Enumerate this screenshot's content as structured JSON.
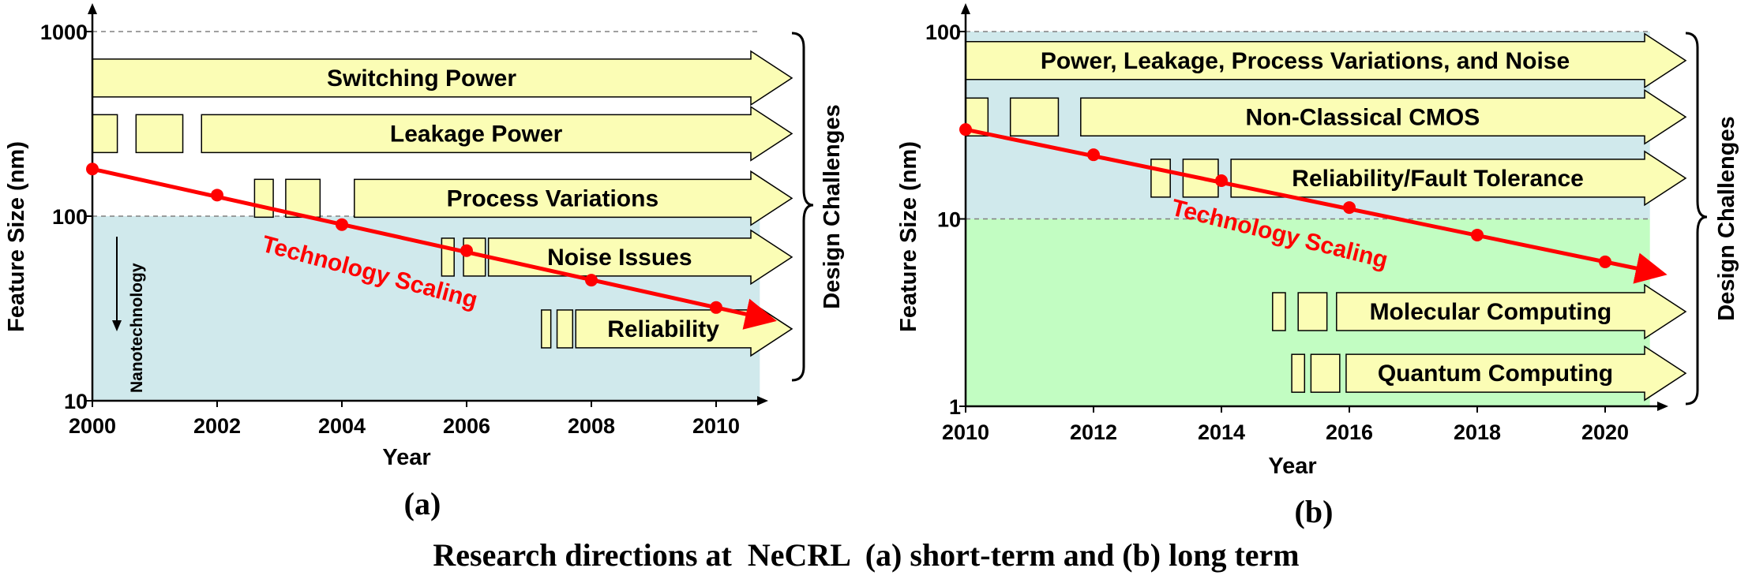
{
  "caption": "Research directions at  NeCRL  (a) short-term and (b) long term",
  "colors": {
    "arrow_fill": "#fbfdb5",
    "nano_region": "#d0e9ec",
    "top_region_b": "#d0e9ec",
    "molecular_region": "#c2fdc2",
    "trend": "#ff0000",
    "text": "#000000"
  },
  "chart_data": [
    {
      "type": "line",
      "panel_label": "(a)",
      "xlabel": "Year",
      "ylabel": "Feature Size (nm)",
      "y_scale": "log",
      "xlim": [
        2000,
        2010.7
      ],
      "ylim": [
        10,
        1000
      ],
      "x_ticks": [
        "2000",
        "2002",
        "2004",
        "2006",
        "2008",
        "2010"
      ],
      "y_ticks": [
        "10",
        "100",
        "1000"
      ],
      "region_label": "Nanotechnology",
      "region_ylim": [
        10,
        100
      ],
      "series": [
        {
          "name": "Technology Scaling",
          "points": [
            [
              2000,
              180
            ],
            [
              2002,
              130
            ],
            [
              2004,
              90
            ],
            [
              2006,
              65
            ],
            [
              2008,
              45
            ],
            [
              2010,
              32
            ]
          ]
        }
      ],
      "challenges_label": "Design Challenges",
      "challenges": [
        {
          "label": "Switching Power",
          "start_year": 2000.0,
          "y": 560
        },
        {
          "label": "Leakage Power",
          "start_year": 2001.75,
          "y": 280
        },
        {
          "label": "Process Variations",
          "start_year": 2004.2,
          "y": 125
        },
        {
          "label": "Noise Issues",
          "start_year": 2006.35,
          "y": 60
        },
        {
          "label": "Reliability",
          "start_year": 2007.75,
          "y": 24.5
        }
      ]
    },
    {
      "type": "line",
      "panel_label": "(b)",
      "xlabel": "Year",
      "ylabel": "Feature Size (nm)",
      "y_scale": "log",
      "xlim": [
        2010,
        2020.7
      ],
      "ylim": [
        1,
        100
      ],
      "x_ticks": [
        "2010",
        "2012",
        "2014",
        "2016",
        "2018",
        "2020"
      ],
      "y_ticks": [
        "1",
        "10",
        "100"
      ],
      "series": [
        {
          "name": "Technology Scaling",
          "points": [
            [
              2010,
              30
            ],
            [
              2012,
              22
            ],
            [
              2014,
              16
            ],
            [
              2016,
              11.5
            ],
            [
              2018,
              8.2
            ],
            [
              2020,
              5.9
            ]
          ]
        }
      ],
      "challenges_label": "Design Challenges",
      "challenges": [
        {
          "label": "Power, Leakage, Process Variations, and Noise",
          "start_year": 2010.0,
          "y": 70
        },
        {
          "label": "Non-Classical CMOS",
          "start_year": 2011.8,
          "y": 35
        },
        {
          "label": "Reliability/Fault Tolerance",
          "start_year": 2014.15,
          "y": 16.5
        },
        {
          "label": "Molecular Computing",
          "start_year": 2015.8,
          "y": 3.2
        },
        {
          "label": "Quantum Computing",
          "start_year": 2015.95,
          "y": 1.5
        }
      ]
    }
  ]
}
